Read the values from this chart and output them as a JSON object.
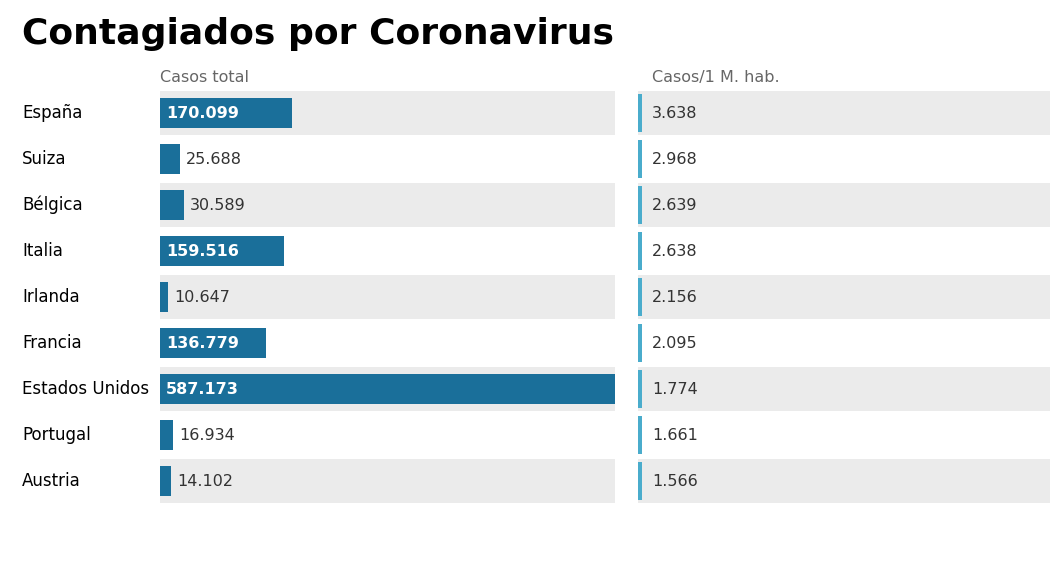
{
  "title": "Contagiados por Coronavirus",
  "col1_header": "Casos total",
  "col2_header": "Casos/1 M. hab.",
  "countries": [
    "España",
    "Suiza",
    "Bélgica",
    "Italia",
    "Irlanda",
    "Francia",
    "Estados Unidos",
    "Portugal",
    "Austria"
  ],
  "total_cases": [
    170099,
    25688,
    30589,
    159516,
    10647,
    136779,
    587173,
    16934,
    14102
  ],
  "total_cases_labels": [
    "170.099",
    "25.688",
    "30.589",
    "159.516",
    "10.647",
    "136.779",
    "587.173",
    "16.934",
    "14.102"
  ],
  "per_million": [
    3638,
    2968,
    2639,
    2638,
    2156,
    2095,
    1774,
    1661,
    1566
  ],
  "per_million_labels": [
    "3.638",
    "2.968",
    "2.639",
    "2.638",
    "2.156",
    "2.095",
    "1.774",
    "1.661",
    "1.566"
  ],
  "bar_color": "#1a6f9a",
  "col2_line_color": "#4aaccc",
  "row_bg": "#ebebeb",
  "row_bg_white": "#ffffff",
  "title_fontsize": 26,
  "header_fontsize": 11.5,
  "label_fontsize": 11.5,
  "country_fontsize": 12,
  "max_total": 587173
}
